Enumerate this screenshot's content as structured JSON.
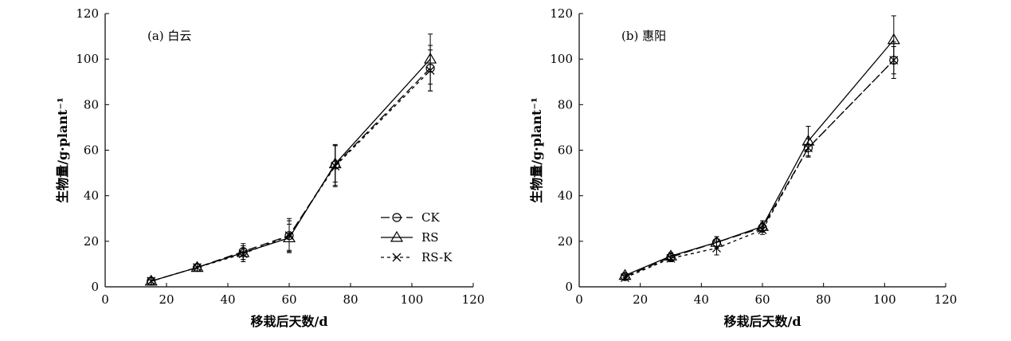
{
  "chart_data": [
    {
      "type": "line",
      "title": "(a) 白云",
      "xlabel": "移栽后天数/d",
      "ylabel": "生物量/g·plant⁻¹",
      "xlim": [
        0,
        120
      ],
      "ylim": [
        0,
        120
      ],
      "xticks": [
        0,
        20,
        40,
        60,
        80,
        100,
        120
      ],
      "yticks": [
        0,
        20,
        40,
        60,
        80,
        100,
        120
      ],
      "grid": false,
      "legend": {
        "position": "bottom-right",
        "entries": [
          "CK",
          "RS",
          "RS-K"
        ]
      },
      "x": [
        15,
        30,
        45,
        60,
        75,
        106
      ],
      "series": [
        {
          "name": "CK",
          "marker": "circle",
          "line": "long-dash",
          "values": [
            2.5,
            8.5,
            15.5,
            22.5,
            53.5,
            96
          ],
          "errors": [
            1.5,
            1.5,
            3.5,
            7.5,
            9,
            10
          ]
        },
        {
          "name": "RS",
          "marker": "triangle",
          "line": "solid",
          "values": [
            2.5,
            8.5,
            15,
            21.5,
            54,
            100
          ],
          "errors": [
            1.5,
            1.5,
            3,
            6,
            8,
            11
          ]
        },
        {
          "name": "RS-K",
          "marker": "cross",
          "line": "dash",
          "values": [
            2.5,
            8.5,
            14.5,
            22.5,
            53,
            95
          ],
          "errors": [
            1.5,
            1.5,
            3.5,
            6.5,
            9,
            9
          ]
        }
      ]
    },
    {
      "type": "line",
      "title": "(b) 惠阳",
      "xlabel": "移栽后天数/d",
      "ylabel": "生物量/g·plant⁻¹",
      "xlim": [
        0,
        120
      ],
      "ylim": [
        0,
        120
      ],
      "xticks": [
        0,
        20,
        40,
        60,
        80,
        100,
        120
      ],
      "yticks": [
        0,
        20,
        40,
        60,
        80,
        100,
        120
      ],
      "grid": false,
      "x": [
        15,
        30,
        45,
        60,
        75,
        103
      ],
      "series": [
        {
          "name": "CK",
          "marker": "circle",
          "line": "long-dash",
          "values": [
            4.5,
            13,
            19.5,
            26,
            61,
            99.5
          ],
          "errors": [
            1,
            1.5,
            2.5,
            2,
            4,
            8
          ]
        },
        {
          "name": "RS",
          "marker": "triangle",
          "line": "solid",
          "values": [
            5,
            13.5,
            19.5,
            26.5,
            64,
            108.5
          ],
          "errors": [
            1,
            1.5,
            2.5,
            2.5,
            6.5,
            10.5
          ]
        },
        {
          "name": "RS-K",
          "marker": "cross",
          "line": "dash",
          "values": [
            4,
            12.5,
            17,
            25,
            61,
            99.5
          ],
          "errors": [
            1,
            1.5,
            3,
            2,
            4,
            6
          ]
        }
      ]
    }
  ],
  "colors": {
    "ink": "#000000",
    "background": "#ffffff"
  }
}
